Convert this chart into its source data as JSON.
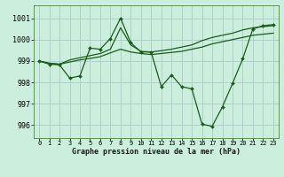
{
  "title": "Graphe pression niveau de la mer (hPa)",
  "bg_color": "#cceedd",
  "grid_color": "#aacccc",
  "line_color": "#1a5c1a",
  "xlim": [
    -0.5,
    23.5
  ],
  "ylim": [
    995.4,
    1001.6
  ],
  "yticks": [
    996,
    997,
    998,
    999,
    1000,
    1001
  ],
  "xticks": [
    0,
    1,
    2,
    3,
    4,
    5,
    6,
    7,
    8,
    9,
    10,
    11,
    12,
    13,
    14,
    15,
    16,
    17,
    18,
    19,
    20,
    21,
    22,
    23
  ],
  "series": [
    {
      "x": [
        0,
        1,
        2,
        3,
        4,
        5,
        6,
        7,
        8,
        9,
        10,
        11,
        12,
        13,
        14,
        15,
        16,
        17,
        18,
        19,
        20,
        21,
        22,
        23
      ],
      "y": [
        999.0,
        998.9,
        998.85,
        999.05,
        999.15,
        999.25,
        999.35,
        999.55,
        1000.55,
        999.75,
        999.45,
        999.42,
        999.48,
        999.55,
        999.65,
        999.75,
        999.95,
        1000.1,
        1000.2,
        1000.3,
        1000.45,
        1000.55,
        1000.6,
        1000.65
      ],
      "marker": false,
      "linewidth": 0.9
    },
    {
      "x": [
        0,
        1,
        2,
        3,
        4,
        5,
        6,
        7,
        8,
        9,
        10,
        11,
        12,
        13,
        14,
        15,
        16,
        17,
        18,
        19,
        20,
        21,
        22,
        23
      ],
      "y": [
        999.0,
        998.88,
        998.85,
        998.95,
        999.05,
        999.12,
        999.2,
        999.38,
        999.55,
        999.42,
        999.35,
        999.3,
        999.35,
        999.4,
        999.45,
        999.55,
        999.65,
        999.8,
        999.9,
        1000.0,
        1000.1,
        1000.2,
        1000.25,
        1000.3
      ],
      "marker": false,
      "linewidth": 0.9
    },
    {
      "x": [
        0,
        1,
        2,
        3,
        4,
        5,
        6,
        7,
        8,
        9,
        10,
        11,
        12,
        13,
        14,
        15,
        16,
        17,
        18,
        19,
        20,
        21,
        22,
        23
      ],
      "y": [
        999.0,
        998.85,
        998.82,
        998.2,
        998.3,
        999.6,
        999.55,
        1000.05,
        1001.0,
        999.85,
        999.42,
        999.42,
        997.8,
        998.35,
        997.8,
        997.7,
        996.05,
        995.95,
        996.85,
        997.95,
        999.1,
        1000.5,
        1000.65,
        1000.7
      ],
      "marker": true,
      "linewidth": 0.9
    }
  ]
}
